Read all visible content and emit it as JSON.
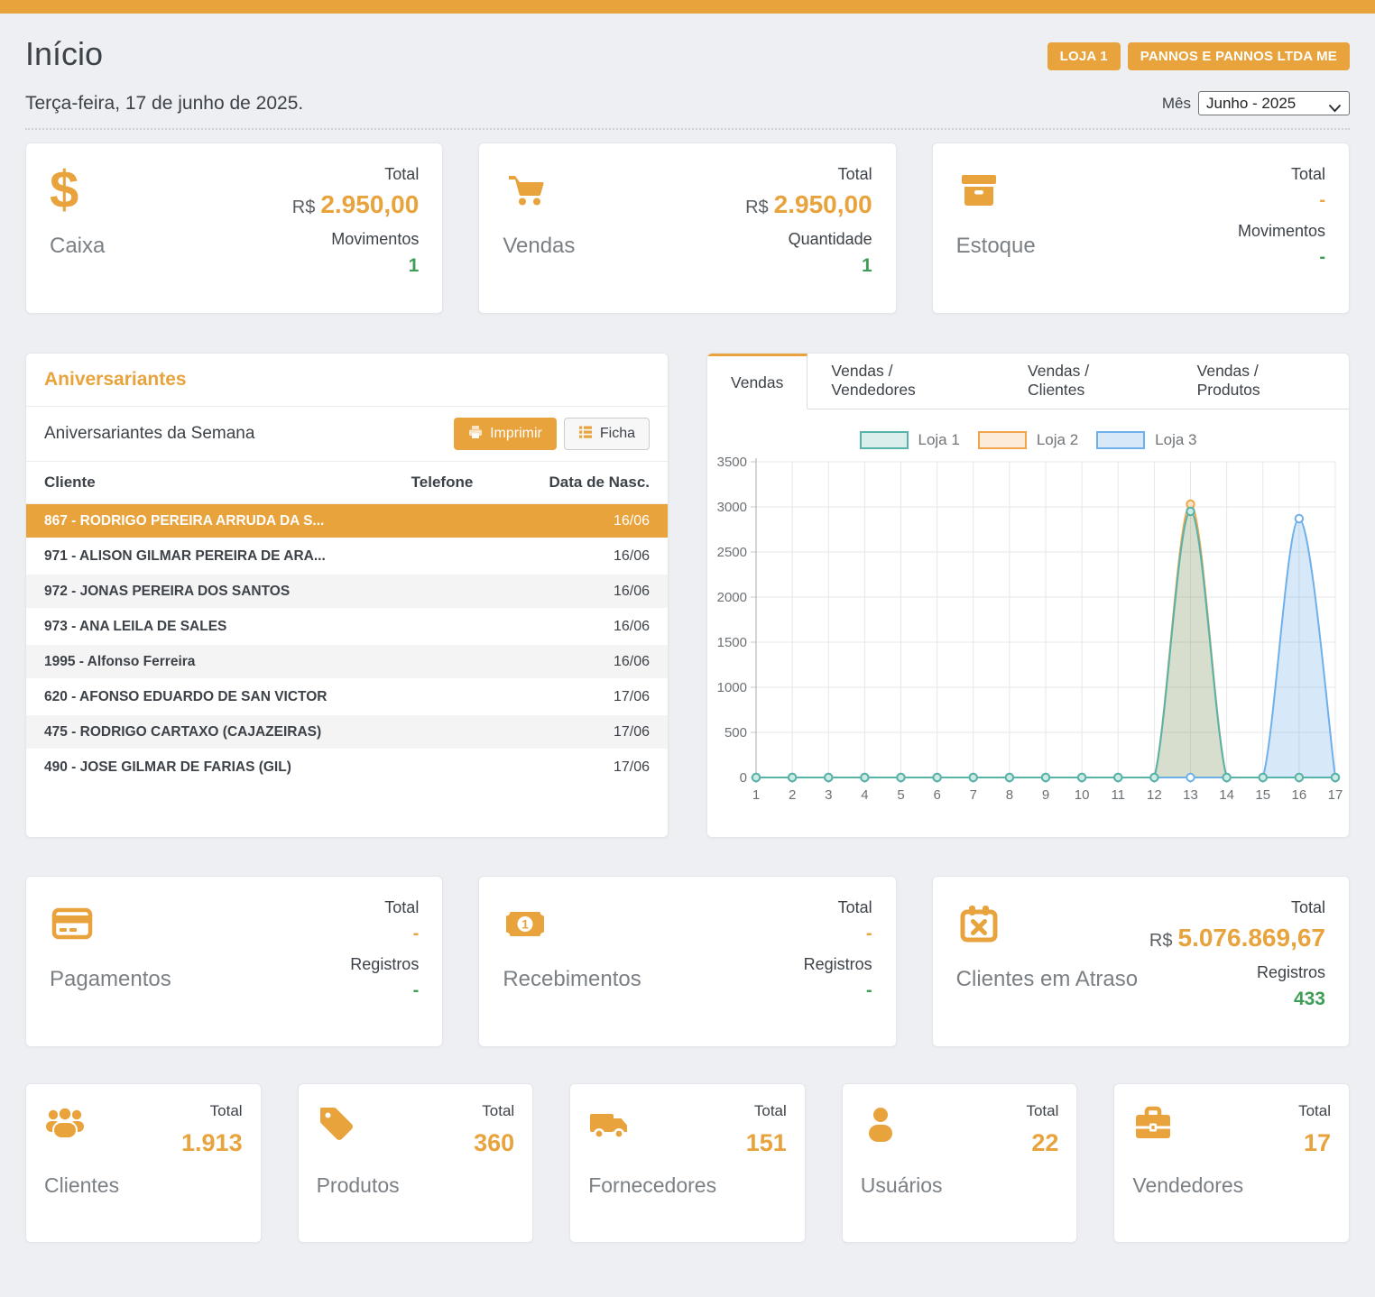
{
  "accent_color": "#e8a33d",
  "green_color": "#3f9d58",
  "page": {
    "title": "Início",
    "date": "Terça-feira, 17 de junho de 2025."
  },
  "badges": {
    "store": "LOJA 1",
    "company": "PANNOS E PANNOS LTDA ME"
  },
  "month_filter": {
    "label": "Mês",
    "value": "Junho - 2025"
  },
  "top_cards": [
    {
      "name": "Caixa",
      "icon": "dollar-icon",
      "stat1_label": "Total",
      "stat1_prefix": "R$",
      "stat1_value": "2.950,00",
      "stat2_label": "Movimentos",
      "stat2_value": "1"
    },
    {
      "name": "Vendas",
      "icon": "cart-icon",
      "stat1_label": "Total",
      "stat1_prefix": "R$",
      "stat1_value": "2.950,00",
      "stat2_label": "Quantidade",
      "stat2_value": "1"
    },
    {
      "name": "Estoque",
      "icon": "box-icon",
      "stat1_label": "Total",
      "stat1_prefix": "",
      "stat1_value": "-",
      "stat2_label": "Movimentos",
      "stat2_value": "-"
    }
  ],
  "birthdays": {
    "title": "Aniversariantes",
    "subtitle": "Aniversariantes da Semana",
    "print_button": "Imprimir",
    "ficha_button": "Ficha",
    "columns": {
      "client": "Cliente",
      "phone": "Telefone",
      "birth_date": "Data de Nasc."
    },
    "rows": [
      {
        "client": "867 - RODRIGO PEREIRA ARRUDA DA S...",
        "phone": "",
        "date": "16/06",
        "selected": true
      },
      {
        "client": "971 - ALISON GILMAR PEREIRA DE ARA...",
        "phone": "",
        "date": "16/06"
      },
      {
        "client": "972 - JONAS PEREIRA DOS SANTOS",
        "phone": "",
        "date": "16/06"
      },
      {
        "client": "973 - ANA LEILA DE SALES",
        "phone": "",
        "date": "16/06"
      },
      {
        "client": "1995 - Alfonso Ferreira",
        "phone": "",
        "date": "16/06"
      },
      {
        "client": "620 - AFONSO EDUARDO DE SAN VICTOR",
        "phone": "",
        "date": "17/06"
      },
      {
        "client": "475 - RODRIGO CARTAXO (CAJAZEIRAS)",
        "phone": "",
        "date": "17/06"
      },
      {
        "client": "490 - JOSE GILMAR DE FARIAS (GIL)",
        "phone": "",
        "date": "17/06"
      }
    ]
  },
  "sales_panel": {
    "tabs": [
      {
        "label": "Vendas",
        "active": true
      },
      {
        "label": "Vendas / Vendedores"
      },
      {
        "label": "Vendas / Clientes"
      },
      {
        "label": "Vendas / Produtos"
      }
    ]
  },
  "chart_data": {
    "type": "line",
    "x": [
      1,
      2,
      3,
      4,
      5,
      6,
      7,
      8,
      9,
      10,
      11,
      12,
      13,
      14,
      15,
      16,
      17
    ],
    "series": [
      {
        "name": "Loja 1",
        "color": "#56b3aa",
        "fill": "rgba(86,179,170,0.22)",
        "marker_fill": "#cfe9e3",
        "values": [
          0,
          0,
          0,
          0,
          0,
          0,
          0,
          0,
          0,
          0,
          0,
          0,
          2950,
          0,
          0,
          0,
          0
        ]
      },
      {
        "name": "Loja 2",
        "color": "#f0a44e",
        "fill": "rgba(240,164,78,0.22)",
        "marker_fill": "#f9e4c6",
        "values": [
          0,
          0,
          0,
          0,
          0,
          0,
          0,
          0,
          0,
          0,
          0,
          0,
          3030,
          0,
          0,
          0,
          0
        ]
      },
      {
        "name": "Loja 3",
        "color": "#6fb0ea",
        "fill": "rgba(111,176,234,0.28)",
        "marker_fill": "#ffffff",
        "values": [
          0,
          0,
          0,
          0,
          0,
          0,
          0,
          0,
          0,
          0,
          0,
          0,
          0,
          0,
          0,
          2870,
          0
        ]
      }
    ],
    "ylim": [
      0,
      3500
    ],
    "ytick_step": 500,
    "grid": true,
    "legend_position": "top",
    "title": "",
    "xlabel": "",
    "ylabel": ""
  },
  "mid_cards": [
    {
      "name": "Pagamentos",
      "icon": "credit-card-icon",
      "stat1_label": "Total",
      "stat1_prefix": "",
      "stat1_value": "-",
      "stat2_label": "Registros",
      "stat2_value": "-"
    },
    {
      "name": "Recebimentos",
      "icon": "money-bill-icon",
      "stat1_label": "Total",
      "stat1_prefix": "",
      "stat1_value": "-",
      "stat2_label": "Registros",
      "stat2_value": "-"
    },
    {
      "name": "Clientes em Atraso",
      "icon": "calendar-x-icon",
      "stat1_label": "Total",
      "stat1_prefix": "R$",
      "stat1_value": "5.076.869,67",
      "stat2_label": "Registros",
      "stat2_value": "433"
    }
  ],
  "mini_cards": [
    {
      "name": "Clientes",
      "icon": "users-icon",
      "label": "Total",
      "value": "1.913"
    },
    {
      "name": "Produtos",
      "icon": "tag-icon",
      "label": "Total",
      "value": "360"
    },
    {
      "name": "Fornecedores",
      "icon": "truck-icon",
      "label": "Total",
      "value": "151"
    },
    {
      "name": "Usuários",
      "icon": "user-icon",
      "label": "Total",
      "value": "22"
    },
    {
      "name": "Vendedores",
      "icon": "briefcase-icon",
      "label": "Total",
      "value": "17"
    }
  ]
}
